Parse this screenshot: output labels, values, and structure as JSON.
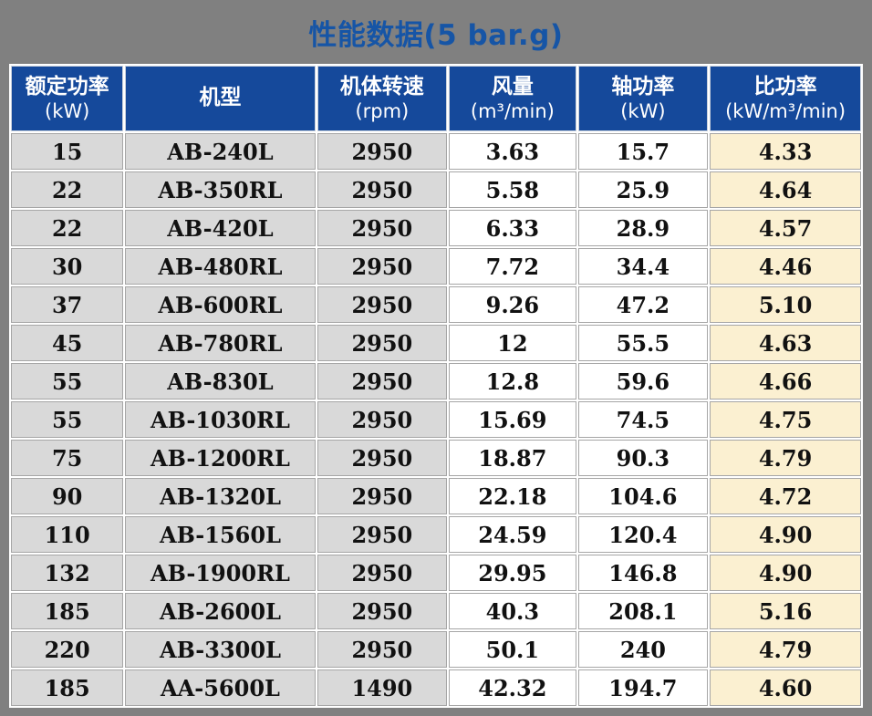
{
  "page": {
    "background_color": "#808080"
  },
  "title": {
    "text": "性能数据(5 bar.g)",
    "color": "#1655a6"
  },
  "table": {
    "style": {
      "header_bg": "#15499b",
      "header_text_color": "#ffffff",
      "gray_cell_bg": "#d9d9d9",
      "white_cell_bg": "#ffffff",
      "cream_cell_bg": "#fbf0d1",
      "data_text_color": "#111111"
    },
    "columns": [
      {
        "key": "rated-power",
        "label": "额定功率",
        "unit": "(kW)"
      },
      {
        "key": "model",
        "label": "机型",
        "unit": ""
      },
      {
        "key": "speed",
        "label": "机体转速",
        "unit": "(rpm)"
      },
      {
        "key": "airflow",
        "label": "风量",
        "unit": "(m³/min)"
      },
      {
        "key": "shaft-power",
        "label": "轴功率",
        "unit": "(kW)"
      },
      {
        "key": "specific-power",
        "label": "比功率",
        "unit": "(kW/m³/min)"
      }
    ],
    "rows": [
      [
        "15",
        "AB-240L",
        "2950",
        "3.63",
        "15.7",
        "4.33"
      ],
      [
        "22",
        "AB-350RL",
        "2950",
        "5.58",
        "25.9",
        "4.64"
      ],
      [
        "22",
        "AB-420L",
        "2950",
        "6.33",
        "28.9",
        "4.57"
      ],
      [
        "30",
        "AB-480RL",
        "2950",
        "7.72",
        "34.4",
        "4.46"
      ],
      [
        "37",
        "AB-600RL",
        "2950",
        "9.26",
        "47.2",
        "5.10"
      ],
      [
        "45",
        "AB-780RL",
        "2950",
        "12",
        "55.5",
        "4.63"
      ],
      [
        "55",
        "AB-830L",
        "2950",
        "12.8",
        "59.6",
        "4.66"
      ],
      [
        "55",
        "AB-1030RL",
        "2950",
        "15.69",
        "74.5",
        "4.75"
      ],
      [
        "75",
        "AB-1200RL",
        "2950",
        "18.87",
        "90.3",
        "4.79"
      ],
      [
        "90",
        "AB-1320L",
        "2950",
        "22.18",
        "104.6",
        "4.72"
      ],
      [
        "110",
        "AB-1560L",
        "2950",
        "24.59",
        "120.4",
        "4.90"
      ],
      [
        "132",
        "AB-1900RL",
        "2950",
        "29.95",
        "146.8",
        "4.90"
      ],
      [
        "185",
        "AB-2600L",
        "2950",
        "40.3",
        "208.1",
        "5.16"
      ],
      [
        "220",
        "AB-3300L",
        "2950",
        "50.1",
        "240",
        "4.79"
      ],
      [
        "185",
        "AA-5600L",
        "1490",
        "42.32",
        "194.7",
        "4.60"
      ]
    ]
  }
}
